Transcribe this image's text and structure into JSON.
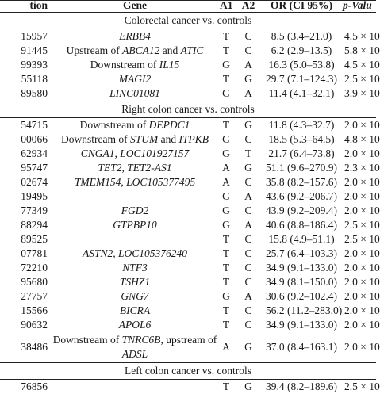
{
  "header": {
    "id": "tion",
    "gene": "Gene",
    "a1": "A1",
    "a2": "A2",
    "or": "OR (CI 95%)",
    "p": "p-Valu"
  },
  "sections": [
    {
      "title": "Colorectal cancer vs. controls",
      "rows": [
        {
          "id": "15957",
          "gene_parts": [
            {
              "t": "ERBB4",
              "i": true
            }
          ],
          "a1": "T",
          "a2": "C",
          "or": "8.5 (3.4–21.0)",
          "p": "4.5 × 10"
        },
        {
          "id": "91445",
          "gene_parts": [
            {
              "t": "Upstream of ",
              "i": false
            },
            {
              "t": "ABCA12",
              "i": true
            },
            {
              "t": " and ",
              "i": false
            },
            {
              "t": "ATIC",
              "i": true
            }
          ],
          "a1": "T",
          "a2": "C",
          "or": "6.2 (2.9–13.5)",
          "p": "5.8 × 10"
        },
        {
          "id": "99393",
          "gene_parts": [
            {
              "t": "Downstream of ",
              "i": false
            },
            {
              "t": "IL15",
              "i": true
            }
          ],
          "a1": "G",
          "a2": "A",
          "or": "16.3 (5.0–53.8)",
          "p": "4.5 × 10"
        },
        {
          "id": "55118",
          "gene_parts": [
            {
              "t": "MAGI2",
              "i": true
            }
          ],
          "a1": "T",
          "a2": "G",
          "or": "29.7 (7.1–124.3)",
          "p": "2.5 × 10"
        },
        {
          "id": "89580",
          "gene_parts": [
            {
              "t": "LINC01081",
              "i": true
            }
          ],
          "a1": "G",
          "a2": "A",
          "or": "11.4 (4.1–32.1)",
          "p": "3.9 × 10"
        }
      ]
    },
    {
      "title": "Right colon cancer vs. controls",
      "rows": [
        {
          "id": "54715",
          "gene_parts": [
            {
              "t": "Downstream of ",
              "i": false
            },
            {
              "t": "DEPDC1",
              "i": true
            }
          ],
          "a1": "T",
          "a2": "G",
          "or": "11.8 (4.3–32.7)",
          "p": "2.0 × 10"
        },
        {
          "id": "00066",
          "gene_parts": [
            {
              "t": "Downstream of ",
              "i": false
            },
            {
              "t": "STUM",
              "i": true
            },
            {
              "t": " and ",
              "i": false
            },
            {
              "t": "ITPKB",
              "i": true
            }
          ],
          "a1": "G",
          "a2": "C",
          "or": "18.5 (5.3–64.5)",
          "p": "4.8 × 10"
        },
        {
          "id": "62934",
          "gene_parts": [
            {
              "t": "CNGA1, LOC101927157",
              "i": true
            }
          ],
          "a1": "G",
          "a2": "T",
          "or": "21.7 (6.4–73.8)",
          "p": "2.0 × 10"
        },
        {
          "id": "95747",
          "gene_parts": [
            {
              "t": "TET2, TET2-AS1",
              "i": true
            }
          ],
          "a1": "A",
          "a2": "G",
          "or": "51.1 (9.6–270.9)",
          "p": "2.3 × 10"
        },
        {
          "id": "02674",
          "gene_parts": [
            {
              "t": "TMEM154, LOC105377495",
              "i": true
            }
          ],
          "a1": "A",
          "a2": "C",
          "or": "35.8 (8.2–157.6)",
          "p": "2.0 × 10"
        },
        {
          "id": "19495",
          "gene_parts": [],
          "a1": "G",
          "a2": "A",
          "or": "43.6 (9.2–206.7)",
          "p": "2.0 × 10"
        },
        {
          "id": "77349",
          "gene_parts": [
            {
              "t": "FGD2",
              "i": true
            }
          ],
          "a1": "G",
          "a2": "C",
          "or": "43.9 (9.2–209.4)",
          "p": "2.0 × 10"
        },
        {
          "id": "88294",
          "gene_parts": [
            {
              "t": "GTPBP10",
              "i": true
            }
          ],
          "a1": "G",
          "a2": "A",
          "or": "40.6 (8.8–186.4)",
          "p": "2.5 × 10"
        },
        {
          "id": "89525",
          "gene_parts": [],
          "a1": "T",
          "a2": "C",
          "or": "15.8 (4.9–51.1)",
          "p": "2.5 × 10"
        },
        {
          "id": "07781",
          "gene_parts": [
            {
              "t": "ASTN2, LOC105376240",
              "i": true
            }
          ],
          "a1": "T",
          "a2": "C",
          "or": "25.7 (6.4–103.3)",
          "p": "2.0 × 10"
        },
        {
          "id": "72210",
          "gene_parts": [
            {
              "t": "NTF3",
              "i": true
            }
          ],
          "a1": "T",
          "a2": "C",
          "or": "34.9 (9.1–133.0)",
          "p": "2.0 × 10"
        },
        {
          "id": "95680",
          "gene_parts": [
            {
              "t": "TSHZ1",
              "i": true
            }
          ],
          "a1": "T",
          "a2": "C",
          "or": "34.9 (8.1–150.0)",
          "p": "2.0 × 10"
        },
        {
          "id": "27757",
          "gene_parts": [
            {
              "t": "GNG7",
              "i": true
            }
          ],
          "a1": "G",
          "a2": "A",
          "or": "30.6 (9.2–102.4)",
          "p": "2.0 × 10"
        },
        {
          "id": "15566",
          "gene_parts": [
            {
              "t": "BICRA",
              "i": true
            }
          ],
          "a1": "T",
          "a2": "C",
          "or": "56.2 (11.2–283.0)",
          "p": "2.0 × 10"
        },
        {
          "id": "90632",
          "gene_parts": [
            {
              "t": "APOL6",
              "i": true
            }
          ],
          "a1": "T",
          "a2": "C",
          "or": "34.9 (9.1–133.0)",
          "p": "2.0 × 10"
        },
        {
          "id": "38486",
          "tall": true,
          "gene_parts": [
            {
              "t": "Downstream of ",
              "i": false
            },
            {
              "t": "TNRC6B",
              "i": true
            },
            {
              "t": ", upstream of ",
              "i": false
            },
            {
              "t": "ADSL",
              "i": true
            }
          ],
          "a1": "A",
          "a2": "G",
          "or": "37.0 (8.4–163.1)",
          "p": "2.0 × 10"
        }
      ]
    },
    {
      "title": "Left colon cancer vs. controls",
      "rows": [
        {
          "id": "76856",
          "gene_parts": [],
          "a1": "T",
          "a2": "G",
          "or": "39.4 (8.2–189.6)",
          "p": "2.5 × 10"
        }
      ]
    }
  ]
}
